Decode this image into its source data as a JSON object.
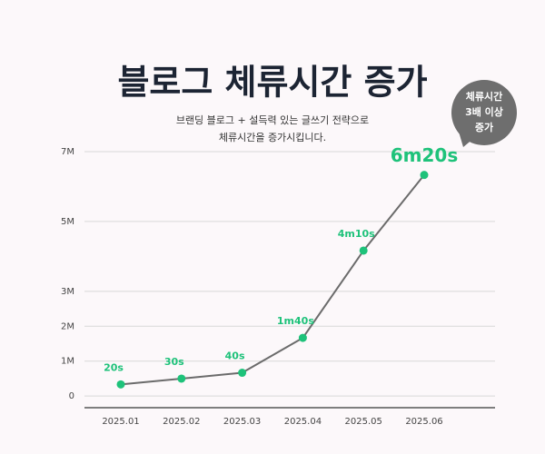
{
  "chart_data": {
    "type": "line",
    "title": "블로그 체류시간 증가",
    "subtitle": [
      "브랜딩 블로그 + 설득력 있는 글쓰기 전략으로",
      "체류시간을 증가시킵니다."
    ],
    "annotation": [
      "체류시간",
      "3배 이상",
      "증가"
    ],
    "categories": [
      "2025.01",
      "2025.02",
      "2025.03",
      "2025.04",
      "2025.05",
      "2025.06"
    ],
    "values": [
      20,
      30,
      40,
      100,
      250,
      380
    ],
    "value_labels": [
      "20s",
      "30s",
      "40s",
      "1m40s",
      "4m10s",
      "6m20s"
    ],
    "color": "#1ec27a",
    "line_color": "#6b6b6b",
    "ylim": [
      -20,
      420
    ],
    "yticks": [
      0,
      {
        "value": 60,
        "label": "1M"
      },
      {
        "value": 120,
        "label": "2M"
      },
      {
        "value": 180,
        "label": "3M"
      },
      {
        "value": 300,
        "label": "5M"
      },
      {
        "value": 420,
        "label": "7M"
      }
    ],
    "grid": true
  }
}
